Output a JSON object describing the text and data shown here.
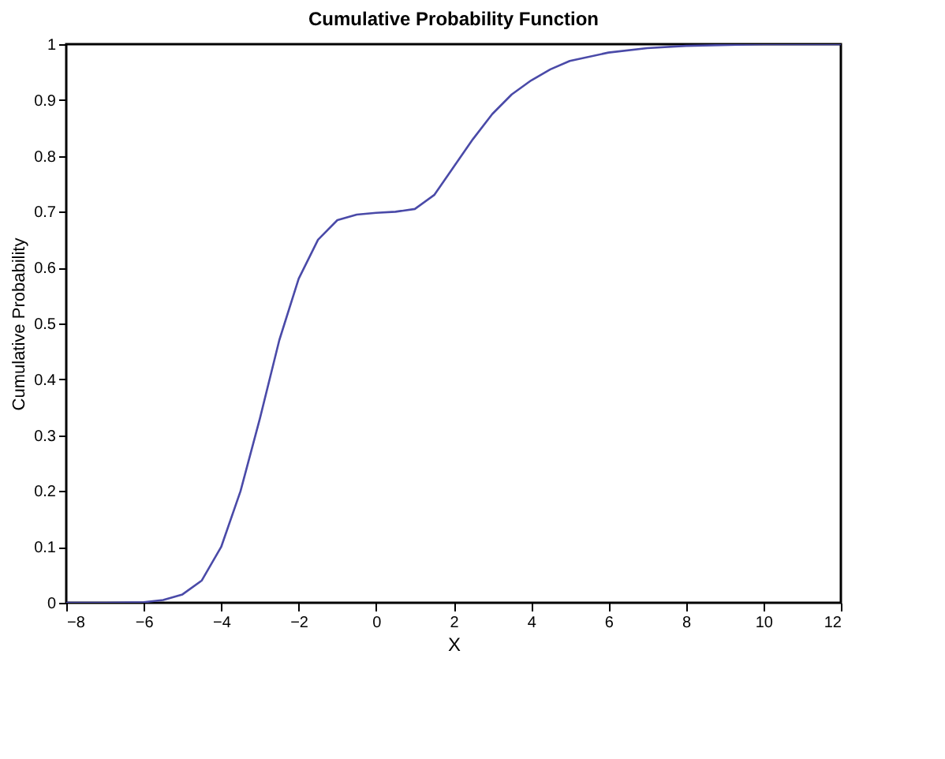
{
  "chart_data": {
    "type": "line",
    "title": "Cumulative Probability Function",
    "xlabel": "X",
    "ylabel": "Cumulative Probability",
    "x": [
      -8,
      -7,
      -6,
      -5.5,
      -5,
      -4.5,
      -4,
      -3.5,
      -3,
      -2.5,
      -2,
      -1.5,
      -1,
      -0.5,
      0,
      0.5,
      1,
      1.5,
      2,
      2.5,
      3,
      3.5,
      4,
      4.5,
      5,
      6,
      7,
      8,
      10,
      12
    ],
    "series": [
      {
        "color": "#4a4aa8",
        "values": [
          0,
          0,
          0.001,
          0.005,
          0.015,
          0.04,
          0.1,
          0.2,
          0.33,
          0.47,
          0.58,
          0.65,
          0.685,
          0.695,
          0.698,
          0.7,
          0.705,
          0.73,
          0.78,
          0.83,
          0.875,
          0.91,
          0.935,
          0.955,
          0.97,
          0.985,
          0.993,
          0.997,
          1.0,
          1.0
        ]
      }
    ],
    "xlim": [
      -8,
      12
    ],
    "ylim": [
      0,
      1
    ],
    "xticks": [
      -8,
      -6,
      -4,
      -2,
      0,
      2,
      4,
      6,
      8,
      10,
      12
    ],
    "yticks": [
      0,
      0.1,
      0.2,
      0.3,
      0.4,
      0.5,
      0.6,
      0.7,
      0.8,
      0.9,
      1
    ],
    "grid": false,
    "legend": false,
    "marker": "none",
    "line_style": "solid"
  }
}
